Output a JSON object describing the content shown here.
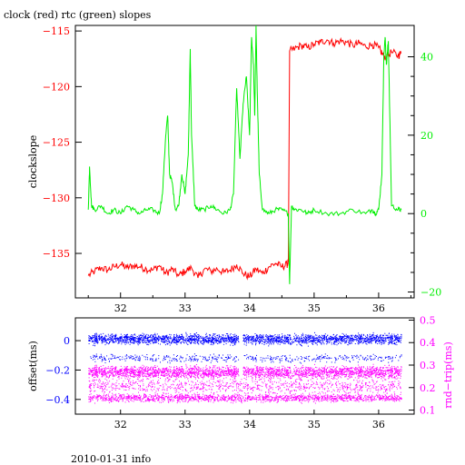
{
  "footer": "2010-01-31 info",
  "colors": {
    "red": "#ff0000",
    "green": "#00ee00",
    "blue": "#0000ff",
    "magenta": "#ff00ff",
    "black": "#000000"
  },
  "chart_data": [
    {
      "type": "line",
      "title": "clock (red) rtc (green) slopes",
      "ylabel": "clockslope",
      "y2label": "",
      "xlim": [
        31.3,
        36.55
      ],
      "ylim": [
        -139,
        -114.5
      ],
      "y2lim": [
        -21.5,
        48
      ],
      "xticks": [
        32,
        33,
        34,
        35,
        36
      ],
      "yticks": [
        -115,
        -120,
        -125,
        -130,
        -135
      ],
      "y2ticks": [
        40,
        20,
        0,
        -20
      ],
      "series": [
        {
          "color": "red",
          "axis": "left",
          "x": [
            31.5,
            31.6,
            31.7,
            31.8,
            31.9,
            32.0,
            32.1,
            32.2,
            32.3,
            32.4,
            32.5,
            32.6,
            32.7,
            32.8,
            32.9,
            33.0,
            33.1,
            33.2,
            33.3,
            33.4,
            33.5,
            33.6,
            33.7,
            33.8,
            33.9,
            34.0,
            34.1,
            34.2,
            34.3,
            34.4,
            34.5,
            34.58,
            34.6,
            34.62,
            34.7,
            34.8,
            34.9,
            35.0,
            35.1,
            35.2,
            35.3,
            35.4,
            35.5,
            35.6,
            35.7,
            35.8,
            35.9,
            36.0,
            36.05,
            36.1,
            36.2,
            36.3,
            36.35
          ],
          "y": [
            -137,
            -136.6,
            -136.3,
            -136.5,
            -136.2,
            -136.0,
            -136.3,
            -136.1,
            -136.2,
            -136.4,
            -136.5,
            -136.1,
            -136.8,
            -136.4,
            -137.0,
            -136.6,
            -136.3,
            -137.2,
            -136.4,
            -136.6,
            -136.4,
            -136.7,
            -136.5,
            -136.0,
            -136.8,
            -137.1,
            -136.4,
            -136.8,
            -136.2,
            -135.9,
            -136.2,
            -136.0,
            -135.8,
            -116.8,
            -116.6,
            -116.3,
            -116.5,
            -116.2,
            -116.0,
            -115.8,
            -116.1,
            -115.9,
            -116.0,
            -116.3,
            -116.1,
            -116.4,
            -116.2,
            -116.5,
            -117.0,
            -117.4,
            -116.9,
            -117.2,
            -117.0
          ]
        },
        {
          "color": "green",
          "axis": "right",
          "x": [
            31.5,
            31.52,
            31.55,
            31.6,
            31.7,
            31.8,
            31.9,
            32.0,
            32.1,
            32.2,
            32.3,
            32.4,
            32.5,
            32.6,
            32.65,
            32.7,
            32.73,
            32.76,
            32.8,
            32.85,
            32.9,
            32.95,
            33.0,
            33.05,
            33.08,
            33.1,
            33.15,
            33.2,
            33.3,
            33.4,
            33.5,
            33.6,
            33.7,
            33.75,
            33.8,
            33.85,
            33.9,
            33.95,
            34.0,
            34.03,
            34.06,
            34.08,
            34.1,
            34.12,
            34.15,
            34.2,
            34.3,
            34.4,
            34.5,
            34.6,
            34.62,
            34.65,
            34.7,
            34.8,
            34.9,
            35.0,
            35.2,
            35.4,
            35.6,
            35.8,
            35.9,
            35.95,
            36.0,
            36.05,
            36.08,
            36.1,
            36.12,
            36.15,
            36.2,
            36.3,
            36.35
          ],
          "y": [
            1,
            12,
            2,
            1,
            2,
            0,
            1,
            0,
            2,
            1,
            0,
            1,
            1,
            0,
            5,
            20,
            25,
            10,
            8,
            1,
            2,
            10,
            5,
            15,
            42,
            20,
            2,
            1,
            1,
            2,
            1,
            0,
            1,
            5,
            32,
            14,
            28,
            35,
            20,
            45,
            38,
            25,
            48,
            30,
            10,
            1,
            0,
            1,
            1,
            0,
            -18,
            2,
            1,
            1,
            0,
            1,
            0,
            0,
            1,
            0,
            1,
            0,
            1,
            10,
            40,
            45,
            38,
            44,
            2,
            1,
            1
          ]
        }
      ]
    },
    {
      "type": "scatter",
      "ylabel": "offset(ms)",
      "y2label": "rnd−trip(ms)",
      "xlim": [
        31.3,
        36.55
      ],
      "ylim": [
        -0.5,
        0.155
      ],
      "y2lim": [
        0.082,
        0.51
      ],
      "xticks": [
        32,
        33,
        34,
        35,
        36
      ],
      "yticks": [
        0,
        -0.2,
        -0.4
      ],
      "y2ticks": [
        0.5,
        0.4,
        0.3,
        0.2,
        0.1
      ],
      "series": [
        {
          "color": "blue",
          "axis": "left",
          "x_range": [
            31.5,
            36.35
          ],
          "bands": [
            {
              "center": 0.01,
              "spread": 0.05
            },
            {
              "center": -0.12,
              "spread": 0.04
            }
          ]
        },
        {
          "color": "magenta",
          "axis": "left",
          "x_range": [
            31.5,
            36.35
          ],
          "bands": [
            {
              "center": -0.215,
              "spread": 0.06
            },
            {
              "center": -0.39,
              "spread": 0.04
            },
            {
              "center": -0.31,
              "spread": 0.07
            }
          ]
        }
      ]
    }
  ]
}
